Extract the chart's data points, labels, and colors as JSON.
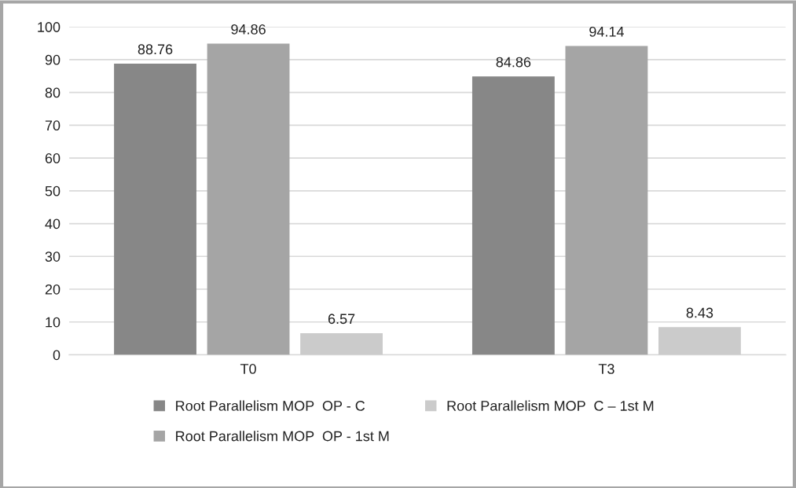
{
  "chart_data": {
    "type": "bar",
    "categories": [
      "T0",
      "T3"
    ],
    "series": [
      {
        "name": "Root Parallelism MOP  OP - C",
        "color": "#878787",
        "values": [
          88.76,
          84.86
        ]
      },
      {
        "name": "Root Parallelism MOP  OP - 1st M",
        "color": "#a5a5a5",
        "values": [
          94.86,
          94.14
        ]
      },
      {
        "name": "Root Parallelism MOP  C – 1st M",
        "color": "#cbcbcb",
        "values": [
          6.57,
          8.43
        ]
      }
    ],
    "ylim": [
      0,
      100
    ],
    "yticks": [
      0,
      10,
      20,
      30,
      40,
      50,
      60,
      70,
      80,
      90,
      100
    ],
    "grid": "y",
    "legend": "bottom",
    "data_labels": true
  }
}
